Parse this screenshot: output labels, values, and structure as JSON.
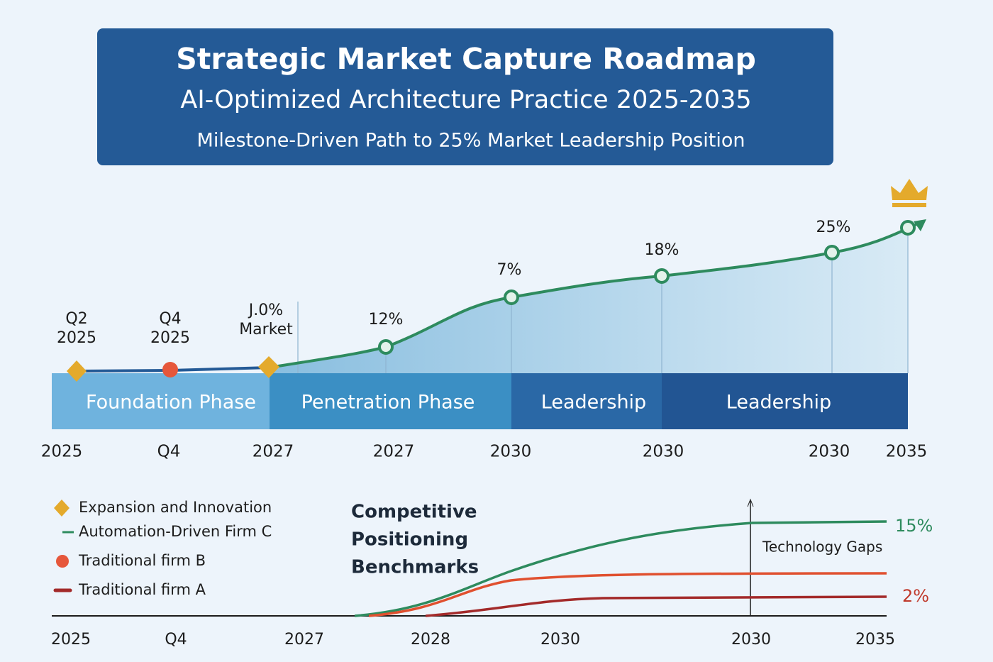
{
  "header": {
    "title": "Strategic Market Capture Roadmap",
    "subtitle": "AI-Optimized Architecture Practice 2025-2035",
    "tagline": "Milestone-Driven Path to 25% Market Leadership Position"
  },
  "roadmap": {
    "milestones": [
      [
        "Q2",
        "2025"
      ],
      [
        "Q4",
        "2025"
      ],
      [
        "J.0%",
        "Market"
      ],
      [
        "12%"
      ],
      [
        "7%"
      ],
      [
        "18%"
      ],
      [
        "25%"
      ]
    ],
    "phases": [
      "Foundation Phase",
      "Penetration Phase",
      "Leadership",
      "Leadership"
    ],
    "axis_labels": [
      "2025",
      "Q4",
      "2027",
      "2027",
      "2030",
      "2030",
      "2030",
      "2035"
    ]
  },
  "benchmark": {
    "title": [
      "Competitive",
      "Positioning",
      "Benchmarks"
    ],
    "legend": [
      "Expansion and Innovation",
      "Automation-Driven Firm C",
      "Traditional firm B",
      "Traditional firm A"
    ],
    "annotation": "Technology Gaps",
    "end_labels": [
      "15%",
      "2%"
    ],
    "axis_labels": [
      "2025",
      "Q4",
      "2027",
      "2028",
      "2030",
      "2030",
      "2035"
    ]
  }
}
